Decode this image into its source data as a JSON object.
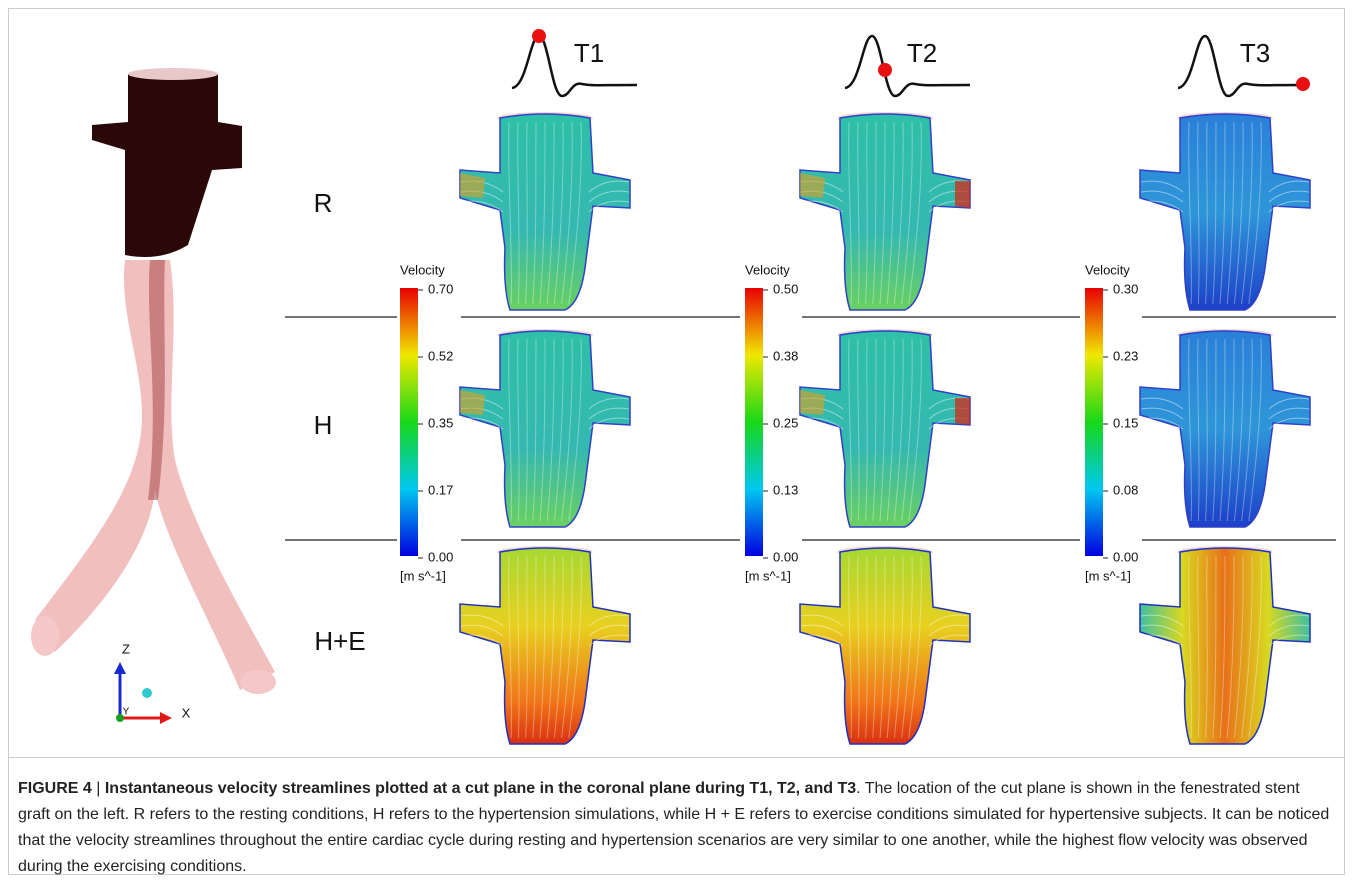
{
  "figure": {
    "columns": [
      "T1",
      "T2",
      "T3"
    ],
    "rows": [
      "R",
      "H",
      "H+E"
    ],
    "colorbars": [
      {
        "title": "Velocity",
        "ticks": [
          "0.70",
          "0.52",
          "0.35",
          "0.17",
          "0.00"
        ],
        "unit": "[m s^-1]"
      },
      {
        "title": "Velocity",
        "ticks": [
          "0.50",
          "0.38",
          "0.25",
          "0.13",
          "0.00"
        ],
        "unit": "[m s^-1]"
      },
      {
        "title": "Velocity",
        "ticks": [
          "0.30",
          "0.23",
          "0.15",
          "0.08",
          "0.00"
        ],
        "unit": "[m s^-1]"
      }
    ],
    "axes": {
      "z": "Z",
      "x": "X",
      "y": "Y"
    }
  },
  "caption": {
    "label": "FIGURE 4",
    "separator": "|",
    "title": "Instantaneous velocity streamlines plotted at a cut plane in the coronal plane during T1, T2, and T3",
    "body": ". The location of the cut plane is shown in the fenestrated stent graft on the left. R refers to the resting conditions, H refers to the hypertension simulations, while H + E refers to exercise conditions simulated for hypertensive subjects. It can be noticed that the velocity streamlines throughout the entire cardiac cycle during resting and hypertension scenarios are very similar to one another, while the highest flow velocity was observed during the exercising conditions."
  }
}
